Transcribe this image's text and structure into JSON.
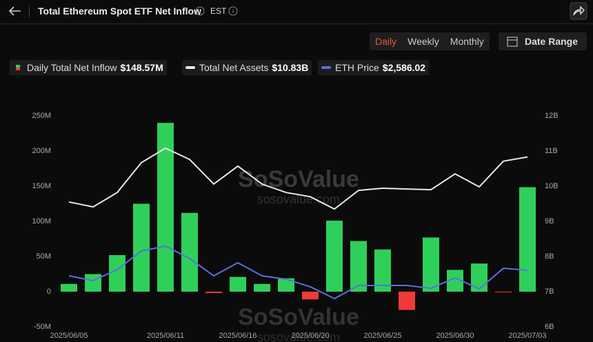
{
  "header": {
    "title": "Total Ethereum Spot ETF Net Inflow",
    "timezone": "EST",
    "tabs": [
      "Daily",
      "Weekly",
      "Monthly"
    ],
    "active_tab": 0,
    "date_range": "Date Range"
  },
  "watermark": {
    "brand": "SoSoValue",
    "url": "sosovalue.com"
  },
  "chart_data": {
    "type": "combo",
    "categories": [
      "2025/06/05",
      null,
      null,
      null,
      "2025/06/11",
      null,
      null,
      "2025/06/16",
      null,
      null,
      "2025/06/20",
      null,
      null,
      "2025/06/25",
      null,
      null,
      "2025/06/30",
      null,
      null,
      "2025/07/03"
    ],
    "series": [
      {
        "name": "Daily Total Net Inflow",
        "legend_value": "$148.57M",
        "type": "bar",
        "color": "#2fd05a",
        "negative_color": "#f03a3a",
        "values": [
          11,
          25,
          52,
          125,
          240,
          112,
          -2,
          21,
          11,
          19,
          -11,
          101,
          72,
          60,
          -26,
          77,
          31,
          40,
          -1,
          148.57
        ]
      },
      {
        "name": "Total Net Assets",
        "legend_value": "$10.83B",
        "type": "line",
        "axis": "y2",
        "color": "#e8e8e8",
        "values": [
          9.55,
          9.41,
          9.82,
          10.67,
          11.08,
          10.76,
          10.06,
          10.57,
          10.06,
          9.82,
          9.7,
          9.35,
          9.88,
          9.94,
          9.92,
          9.9,
          10.35,
          9.98,
          10.71,
          10.83
        ]
      },
      {
        "name": "ETH Price",
        "legend_value": "$2,586.02",
        "type": "line",
        "axis": "y3",
        "color": "#5a6fe0",
        "values": [
          2537,
          2494,
          2592,
          2757,
          2800,
          2690,
          2537,
          2653,
          2537,
          2507,
          2440,
          2336,
          2452,
          2452,
          2452,
          2427,
          2519,
          2421,
          2604,
          2586.02
        ]
      }
    ],
    "ylim": [
      -50,
      250
    ],
    "yticks": [
      {
        "value": -50,
        "label": "-50M"
      },
      0,
      {
        "value": 50,
        "label": "50M"
      },
      {
        "value": 100,
        "label": "100M"
      },
      {
        "value": 150,
        "label": "150M"
      },
      {
        "value": 200,
        "label": "200M"
      },
      {
        "value": 250,
        "label": "250M"
      }
    ],
    "y2lim": [
      6,
      12
    ],
    "y2ticks": [
      {
        "value": 6,
        "label": "6B"
      },
      {
        "value": 7,
        "label": "7B"
      },
      {
        "value": 8,
        "label": "8B"
      },
      {
        "value": 9,
        "label": "9B"
      },
      {
        "value": 10,
        "label": "10B"
      },
      {
        "value": 11,
        "label": "11B"
      },
      {
        "value": 12,
        "label": "12B"
      }
    ],
    "y3lim": [
      2086,
      3952
    ],
    "grid": false
  }
}
